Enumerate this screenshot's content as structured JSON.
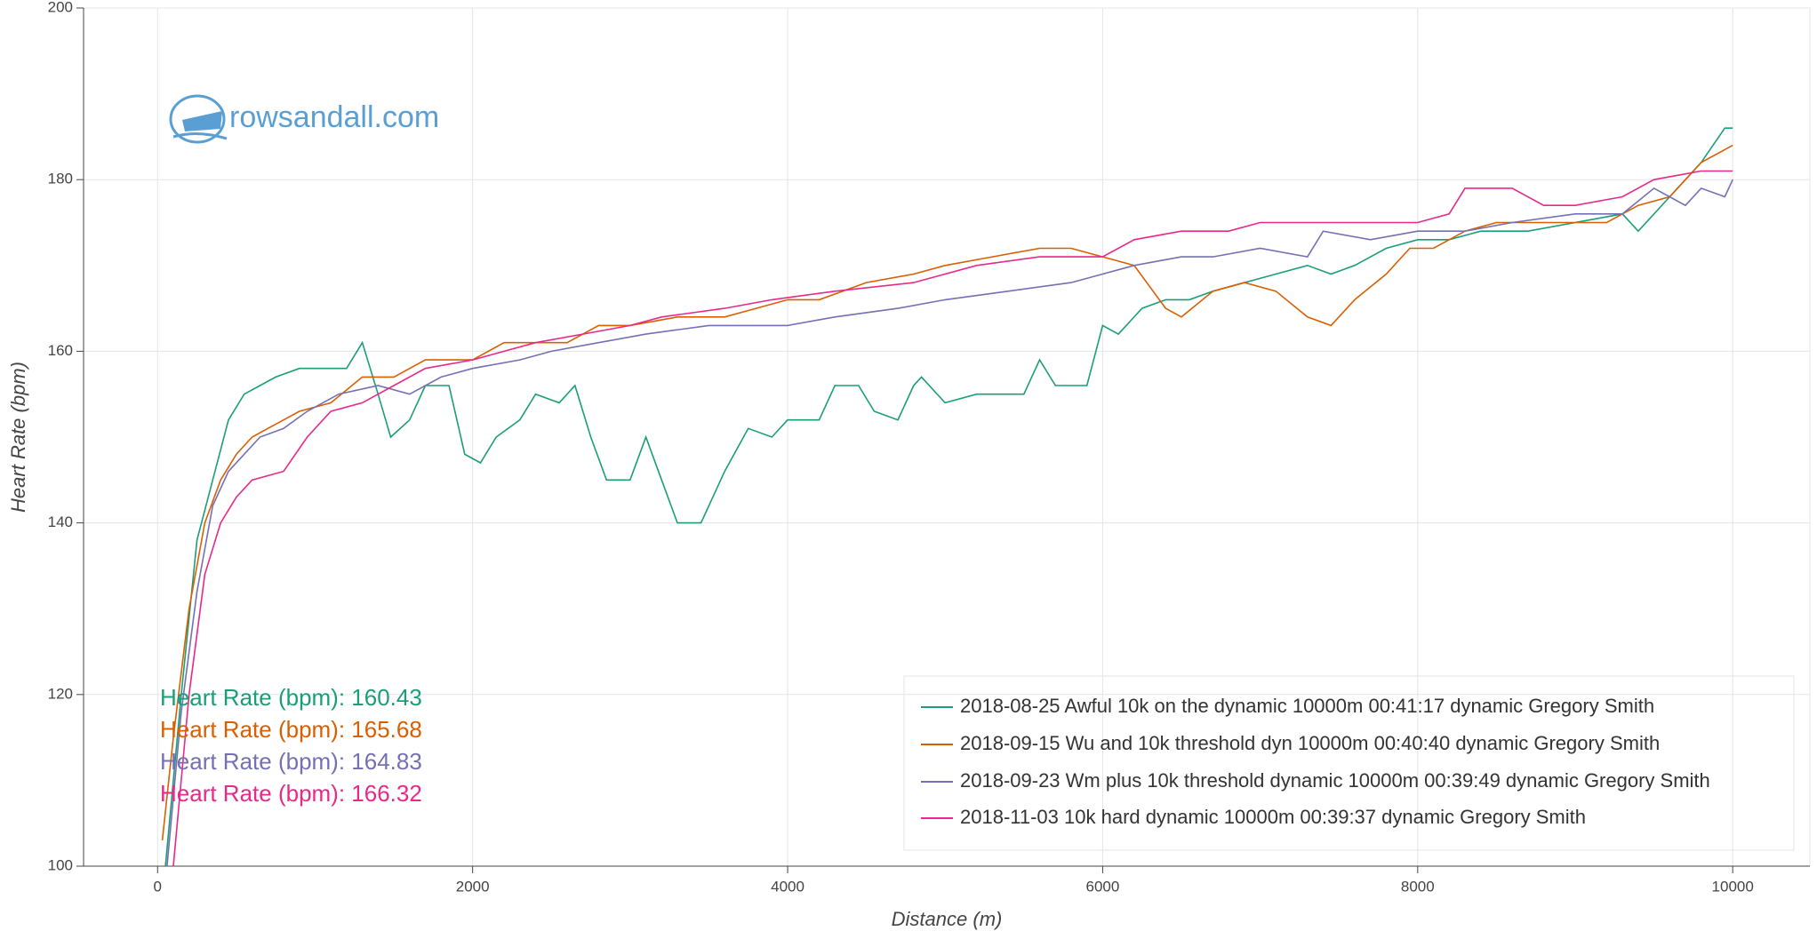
{
  "chart_data": {
    "type": "line",
    "xlabel": "Distance (m)",
    "ylabel": "Heart Rate (bpm)",
    "logo": "rowsandall.com",
    "xlim": [
      -470,
      10490
    ],
    "ylim": [
      100,
      200
    ],
    "xticks": [
      0,
      2000,
      4000,
      6000,
      8000,
      10000
    ],
    "yticks": [
      100,
      120,
      140,
      160,
      180,
      200
    ],
    "grid": true,
    "legend": "bottom-right",
    "annotations": [
      "Heart Rate (bpm): 160.43",
      "Heart Rate (bpm): 165.68",
      "Heart Rate (bpm): 164.83",
      "Heart Rate (bpm): 166.32"
    ],
    "series": [
      {
        "name": "2018-08-25 Awful 10k on the dynamic 10000m 00:41:17 dynamic Gregory Smith",
        "color": "#1b9e77",
        "x": [
          50,
          150,
          250,
          350,
          450,
          550,
          650,
          750,
          900,
          1200,
          1300,
          1400,
          1480,
          1600,
          1700,
          1850,
          1950,
          2050,
          2150,
          2300,
          2400,
          2550,
          2650,
          2750,
          2850,
          3000,
          3100,
          3200,
          3300,
          3450,
          3600,
          3750,
          3900,
          4000,
          4200,
          4300,
          4450,
          4550,
          4700,
          4800,
          4850,
          5000,
          5200,
          5500,
          5600,
          5700,
          5900,
          6000,
          6100,
          6250,
          6400,
          6550,
          6700,
          6900,
          7100,
          7300,
          7450,
          7600,
          7800,
          8000,
          8200,
          8400,
          8700,
          9000,
          9300,
          9400,
          9600,
          9800,
          9950,
          10000
        ],
        "values": [
          100,
          120,
          138,
          145,
          152,
          155,
          156,
          157,
          158,
          158,
          161,
          155,
          150,
          152,
          156,
          156,
          148,
          147,
          150,
          152,
          155,
          154,
          156,
          150,
          145,
          145,
          150,
          145,
          140,
          140,
          146,
          151,
          150,
          152,
          152,
          156,
          156,
          153,
          152,
          156,
          157,
          154,
          155,
          155,
          159,
          156,
          156,
          163,
          162,
          165,
          166,
          166,
          167,
          168,
          169,
          170,
          169,
          170,
          172,
          173,
          173,
          174,
          174,
          175,
          176,
          174,
          178,
          182,
          186,
          186
        ]
      },
      {
        "name": "2018-09-15 Wu and 10k threshold dyn 10000m 00:40:40 dynamic Gregory Smith",
        "color": "#d95f02",
        "x": [
          30,
          100,
          200,
          300,
          400,
          500,
          600,
          700,
          800,
          900,
          1100,
          1300,
          1500,
          1700,
          2000,
          2200,
          2400,
          2600,
          2800,
          3000,
          3300,
          3600,
          3800,
          4000,
          4200,
          4500,
          4800,
          5000,
          5300,
          5600,
          5800,
          6000,
          6200,
          6400,
          6500,
          6700,
          6900,
          7100,
          7300,
          7450,
          7600,
          7800,
          7950,
          8100,
          8300,
          8500,
          8700,
          8900,
          9200,
          9400,
          9600,
          9800,
          10000
        ],
        "values": [
          103,
          115,
          130,
          140,
          145,
          148,
          150,
          151,
          152,
          153,
          154,
          157,
          157,
          159,
          159,
          161,
          161,
          161,
          163,
          163,
          164,
          164,
          165,
          166,
          166,
          168,
          169,
          170,
          171,
          172,
          172,
          171,
          170,
          165,
          164,
          167,
          168,
          167,
          164,
          163,
          166,
          169,
          172,
          172,
          174,
          175,
          175,
          175,
          175,
          177,
          178,
          182,
          184
        ]
      },
      {
        "name": "2018-09-23 Wm plus 10k threshold dynamic 10000m 00:39:49 dynamic Gregory Smith",
        "color": "#7570b3",
        "x": [
          60,
          150,
          250,
          350,
          450,
          550,
          650,
          800,
          950,
          1150,
          1400,
          1600,
          1800,
          2000,
          2300,
          2500,
          2800,
          3100,
          3500,
          4000,
          4300,
          4700,
          5000,
          5400,
          5800,
          6000,
          6200,
          6500,
          6700,
          7000,
          7300,
          7400,
          7700,
          8000,
          8300,
          8600,
          9000,
          9300,
          9500,
          9700,
          9800,
          9950,
          10000
        ],
        "values": [
          100,
          118,
          132,
          142,
          146,
          148,
          150,
          151,
          153,
          155,
          156,
          155,
          157,
          158,
          159,
          160,
          161,
          162,
          163,
          163,
          164,
          165,
          166,
          167,
          168,
          169,
          170,
          171,
          171,
          172,
          171,
          174,
          173,
          174,
          174,
          175,
          176,
          176,
          179,
          177,
          179,
          178,
          180
        ]
      },
      {
        "name": "2018-11-03 10k hard dynamic 10000m 00:39:37 dynamic Gregory Smith",
        "color": "#e7298a",
        "x": [
          100,
          200,
          300,
          400,
          500,
          600,
          800,
          950,
          1100,
          1300,
          1500,
          1700,
          2000,
          2200,
          2400,
          2700,
          3000,
          3200,
          3600,
          3900,
          4300,
          4800,
          5200,
          5600,
          6000,
          6200,
          6500,
          6800,
          7000,
          7300,
          7700,
          8000,
          8200,
          8300,
          8600,
          8800,
          9000,
          9300,
          9500,
          9800,
          10000
        ],
        "values": [
          100,
          120,
          134,
          140,
          143,
          145,
          146,
          150,
          153,
          154,
          156,
          158,
          159,
          160,
          161,
          162,
          163,
          164,
          165,
          166,
          167,
          168,
          170,
          171,
          171,
          173,
          174,
          174,
          175,
          175,
          175,
          175,
          176,
          179,
          179,
          177,
          177,
          178,
          180,
          181,
          181
        ]
      }
    ]
  }
}
